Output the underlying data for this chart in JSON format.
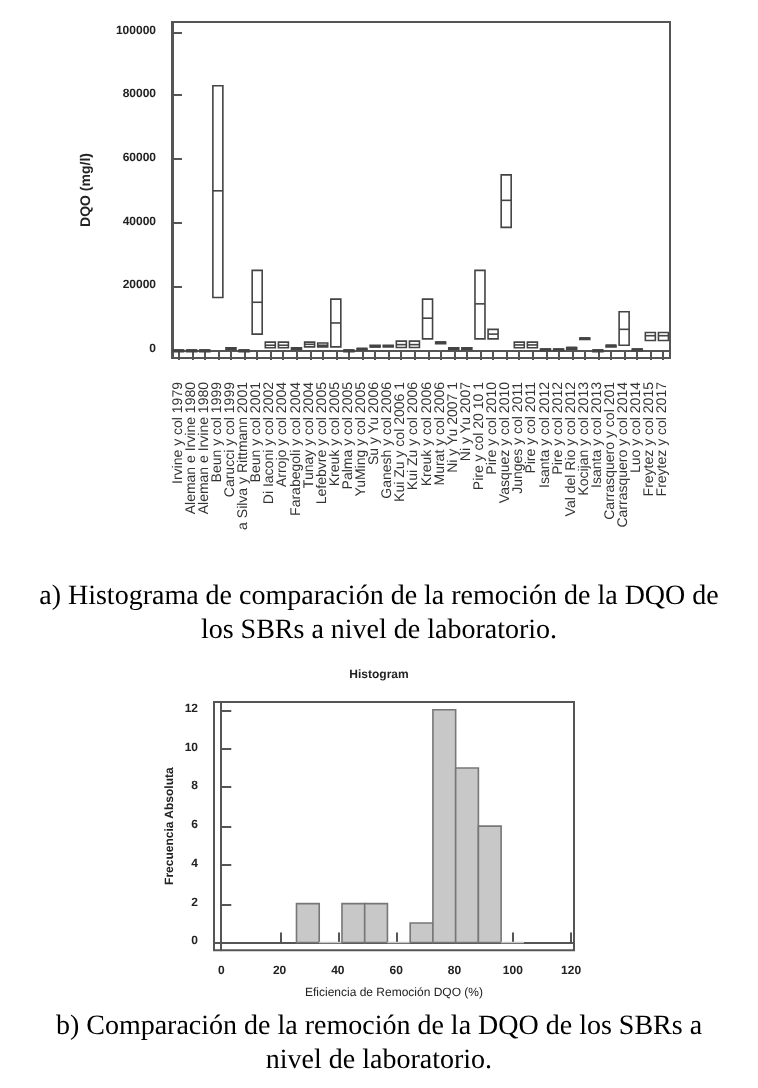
{
  "chart_data": [
    {
      "type": "box",
      "ylabel": "DQO (mg/l)",
      "ylim": [
        -2500,
        103000
      ],
      "yticks": [
        0,
        20000,
        40000,
        60000,
        80000,
        100000
      ],
      "categories": [
        "Irvine y col 1979",
        "Aleman e Irvine 1980",
        "Aleman e Irvine 1980",
        "Beun y col 1999",
        "Carucci y col 1999",
        "a Silva y Rittmann 2001",
        "Beun y col 2001",
        "Di Iaconi y col 2002",
        "Arrojo y col 2004",
        "Farabegoli y col 2004",
        "Tunay y col 2004",
        "Lefebvre y col 2005",
        "Kreuk y col 2005",
        "Palma y col 2005",
        "YuMing y col 2005",
        "Su y Yu 2006",
        "Ganesh y col 2006",
        "Kui Zu y col 2006 1",
        "Kui Zu y col 2006",
        "Kreuk y col 2006",
        "Murat y col 2006",
        "Ni y Yu 2007 1",
        "Ni y Yu 2007",
        "Pire y col 20 10 1",
        "Pire y col 2010",
        "Vasquez y col 2010",
        "Junges y col 2011",
        "Pire y col 2011",
        "Isanta y col 2012",
        "Pire y col 2012",
        "Val del Rio y col 2012",
        "Kocijan y col 2013",
        "Isanta y col 2013",
        "Carrasquero y col 201",
        "Carrasquero y col 2014",
        "Luo y col 2014",
        "Freytez y col 2015",
        "Freytez y col 2017"
      ],
      "boxes": [
        {
          "low": 0,
          "q1": 0,
          "median": 0,
          "q3": 0,
          "high": 0
        },
        {
          "low": 0,
          "q1": 0,
          "median": 0,
          "q3": 0,
          "high": 0
        },
        {
          "low": 0,
          "q1": 0,
          "median": 0,
          "q3": 0,
          "high": 0
        },
        {
          "low": 16500,
          "q1": 16500,
          "median": 50000,
          "q3": 83000,
          "high": 83000
        },
        {
          "low": 700,
          "q1": 700,
          "median": 700,
          "q3": 700,
          "high": 700
        },
        {
          "low": 0,
          "q1": 0,
          "median": 0,
          "q3": 0,
          "high": 0
        },
        {
          "low": 5000,
          "q1": 5000,
          "median": 15000,
          "q3": 25000,
          "high": 25000
        },
        {
          "low": 700,
          "q1": 700,
          "median": 1500,
          "q3": 2500,
          "high": 2500
        },
        {
          "low": 700,
          "q1": 700,
          "median": 1500,
          "q3": 2500,
          "high": 2500
        },
        {
          "low": 700,
          "q1": 700,
          "median": 700,
          "q3": 700,
          "high": 700
        },
        {
          "low": 1000,
          "q1": 1000,
          "median": 1800,
          "q3": 2500,
          "high": 2500
        },
        {
          "low": 1000,
          "q1": 1000,
          "median": 1500,
          "q3": 2200,
          "high": 2200
        },
        {
          "low": 1000,
          "q1": 1000,
          "median": 8500,
          "q3": 16000,
          "high": 16000
        },
        {
          "low": 0,
          "q1": 0,
          "median": 0,
          "q3": 0,
          "high": 0
        },
        {
          "low": 500,
          "q1": 500,
          "median": 500,
          "q3": 500,
          "high": 500
        },
        {
          "low": 1000,
          "q1": 1000,
          "median": 1000,
          "q3": 1500,
          "high": 1500
        },
        {
          "low": 1200,
          "q1": 1200,
          "median": 1200,
          "q3": 1500,
          "high": 1500
        },
        {
          "low": 800,
          "q1": 800,
          "median": 1700,
          "q3": 2800,
          "high": 2800
        },
        {
          "low": 800,
          "q1": 800,
          "median": 1700,
          "q3": 2800,
          "high": 2800
        },
        {
          "low": 3500,
          "q1": 3500,
          "median": 10000,
          "q3": 16000,
          "high": 16000
        },
        {
          "low": 2500,
          "q1": 2500,
          "median": 2500,
          "q3": 2500,
          "high": 2500
        },
        {
          "low": 700,
          "q1": 700,
          "median": 700,
          "q3": 700,
          "high": 700
        },
        {
          "low": 700,
          "q1": 700,
          "median": 700,
          "q3": 700,
          "high": 700
        },
        {
          "low": 3500,
          "q1": 3500,
          "median": 14500,
          "q3": 25000,
          "high": 25000
        },
        {
          "low": 3500,
          "q1": 3500,
          "median": 5000,
          "q3": 6500,
          "high": 6500
        },
        {
          "low": 38500,
          "q1": 38500,
          "median": 47000,
          "q3": 55000,
          "high": 55000
        },
        {
          "low": 700,
          "q1": 700,
          "median": 1600,
          "q3": 2500,
          "high": 2500
        },
        {
          "low": 700,
          "q1": 700,
          "median": 1600,
          "q3": 2500,
          "high": 2500
        },
        {
          "low": 300,
          "q1": 300,
          "median": 300,
          "q3": 300,
          "high": 300
        },
        {
          "low": 300,
          "q1": 300,
          "median": 300,
          "q3": 300,
          "high": 300
        },
        {
          "low": 800,
          "q1": 800,
          "median": 800,
          "q3": 800,
          "high": 800
        },
        {
          "low": 3800,
          "q1": 3800,
          "median": 3800,
          "q3": 3800,
          "high": 3800
        },
        {
          "low": 0,
          "q1": 0,
          "median": 0,
          "q3": 0,
          "high": 0
        },
        {
          "low": 1500,
          "q1": 1500,
          "median": 1500,
          "q3": 1500,
          "high": 1500
        },
        {
          "low": 1500,
          "q1": 1500,
          "median": 6500,
          "q3": 12000,
          "high": 12000
        },
        {
          "low": 300,
          "q1": 300,
          "median": 300,
          "q3": 300,
          "high": 300
        },
        {
          "low": 3000,
          "q1": 3000,
          "median": 4500,
          "q3": 5500,
          "high": 5500
        },
        {
          "low": 3000,
          "q1": 3000,
          "median": 4500,
          "q3": 5500,
          "high": 5500
        }
      ],
      "annotations": [
        "a) Histograma de comparación de la remoción de la DQO de los SBRs a nivel de laboratorio."
      ]
    },
    {
      "type": "histogram",
      "title": "Histogram",
      "xlabel": "Eficiencia de Remoción DQO (%)",
      "ylabel": "Frecuencia Absoluta",
      "color": "#c8c8c8",
      "bins": [
        25.8,
        33.6,
        41.4,
        49.2,
        57,
        64.8,
        72.6,
        80.4,
        88.2,
        96,
        103.8
      ],
      "values": [
        2,
        0,
        2,
        2,
        0,
        1,
        12,
        9,
        6,
        0
      ],
      "xlim": [
        -2.5,
        121
      ],
      "xticks": [
        0,
        20,
        40,
        60,
        80,
        100,
        120
      ],
      "ylim": [
        -0.4,
        12.4
      ],
      "yticks": [
        0,
        2,
        4,
        6,
        8,
        10,
        12
      ],
      "annotations": [
        "b) Comparación de la remoción de la DQO de los SBRs a nivel de laboratorio."
      ]
    }
  ]
}
